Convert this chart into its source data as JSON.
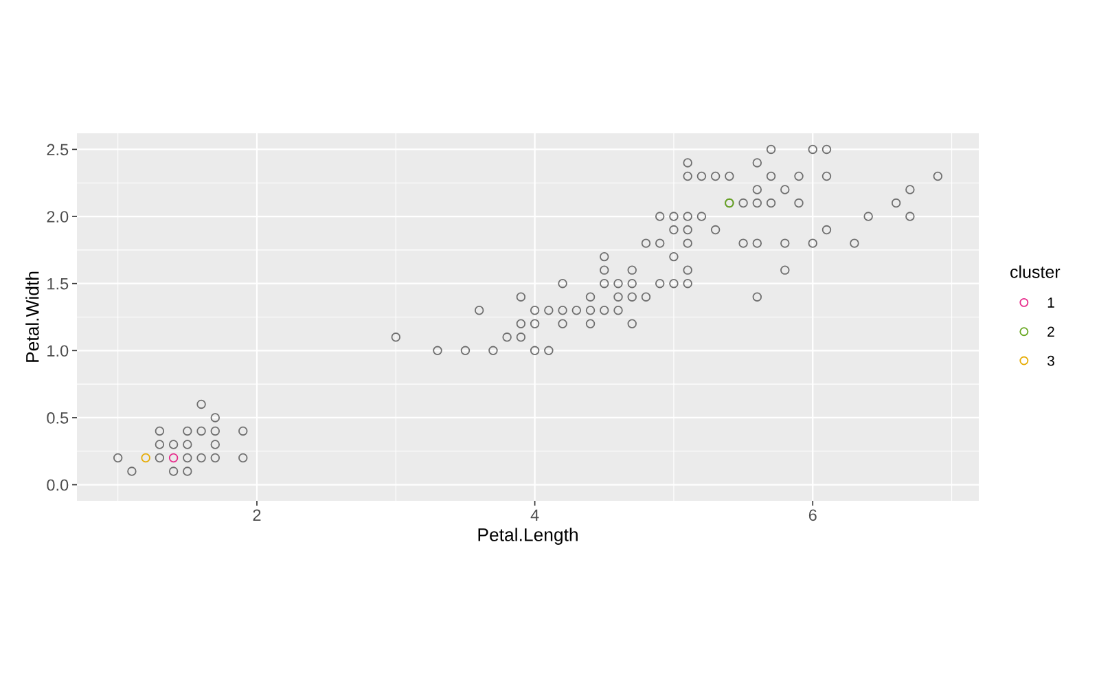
{
  "chart_data": {
    "type": "scatter",
    "xlabel": "Petal.Length",
    "ylabel": "Petal.Width",
    "legend_title": "cluster",
    "legend": "right",
    "grid": true,
    "marker": "circle",
    "xlim": [
      0.705,
      7.195
    ],
    "xticks": [
      2,
      4,
      6
    ],
    "ylim": [
      -0.12,
      2.62
    ],
    "yticks": [
      {
        "value": 0,
        "label": "0.0"
      },
      {
        "value": 0.5,
        "label": "0.5"
      },
      {
        "value": 1,
        "label": "1.0"
      },
      {
        "value": 1.5,
        "label": "1.5"
      },
      {
        "value": 2,
        "label": "2.0"
      },
      {
        "value": 2.5,
        "label": "2.5"
      }
    ],
    "series": [
      {
        "color": "#6e6e6e",
        "x": [
          1.0,
          1.1,
          1.3,
          1.3,
          1.3,
          1.4,
          1.4,
          1.5,
          1.5,
          1.5,
          1.5,
          1.6,
          1.6,
          1.6,
          1.7,
          1.7,
          1.7,
          1.7,
          1.9,
          1.9,
          3.0,
          3.3,
          3.5,
          3.6,
          3.7,
          3.8,
          3.9,
          3.9,
          3.9,
          4.0,
          4.0,
          4.0,
          4.1,
          4.1,
          4.2,
          4.2,
          4.2,
          4.3,
          4.4,
          4.4,
          4.4,
          4.5,
          4.5,
          4.5,
          4.5,
          4.6,
          4.6,
          4.6,
          4.7,
          4.7,
          4.7,
          4.7,
          4.8,
          4.8,
          4.9,
          4.9,
          4.9,
          5.0,
          5.0,
          5.0,
          5.0,
          5.1,
          5.1,
          5.1,
          5.1,
          5.1,
          5.1,
          5.1,
          5.2,
          5.2,
          5.3,
          5.3,
          5.4,
          5.4,
          5.5,
          5.5,
          5.6,
          5.6,
          5.6,
          5.6,
          5.6,
          5.7,
          5.7,
          5.7,
          5.8,
          5.8,
          5.8,
          5.9,
          5.9,
          6.0,
          6.0,
          6.1,
          6.1,
          6.1,
          6.3,
          6.4,
          6.6,
          6.7,
          6.7,
          6.9
        ],
        "values": [
          0.2,
          0.1,
          0.2,
          0.3,
          0.4,
          0.1,
          0.3,
          0.1,
          0.2,
          0.3,
          0.4,
          0.2,
          0.4,
          0.6,
          0.2,
          0.3,
          0.4,
          0.5,
          0.2,
          0.4,
          1.1,
          1.0,
          1.0,
          1.3,
          1.0,
          1.1,
          1.1,
          1.2,
          1.4,
          1.0,
          1.2,
          1.3,
          1.0,
          1.3,
          1.2,
          1.3,
          1.5,
          1.3,
          1.2,
          1.3,
          1.4,
          1.3,
          1.5,
          1.6,
          1.7,
          1.3,
          1.4,
          1.5,
          1.2,
          1.4,
          1.5,
          1.6,
          1.4,
          1.8,
          1.5,
          1.8,
          2.0,
          1.5,
          1.7,
          1.9,
          2.0,
          1.5,
          1.6,
          1.8,
          1.9,
          2.0,
          2.3,
          2.4,
          2.0,
          2.3,
          1.9,
          2.3,
          2.1,
          2.3,
          1.8,
          2.1,
          1.4,
          1.8,
          2.1,
          2.2,
          2.4,
          2.1,
          2.3,
          2.5,
          1.6,
          1.8,
          2.2,
          2.1,
          2.3,
          1.8,
          2.5,
          1.9,
          2.3,
          2.5,
          1.8,
          2.0,
          2.1,
          2.0,
          2.2,
          2.3
        ]
      },
      {
        "name": "1",
        "color": "#e7298a",
        "x": [
          1.4
        ],
        "values": [
          0.2
        ]
      },
      {
        "name": "2",
        "color": "#66a61e",
        "x": [
          5.4
        ],
        "values": [
          2.1
        ]
      },
      {
        "name": "3",
        "color": "#e6ab02",
        "x": [
          1.2
        ],
        "values": [
          0.2
        ]
      }
    ]
  }
}
